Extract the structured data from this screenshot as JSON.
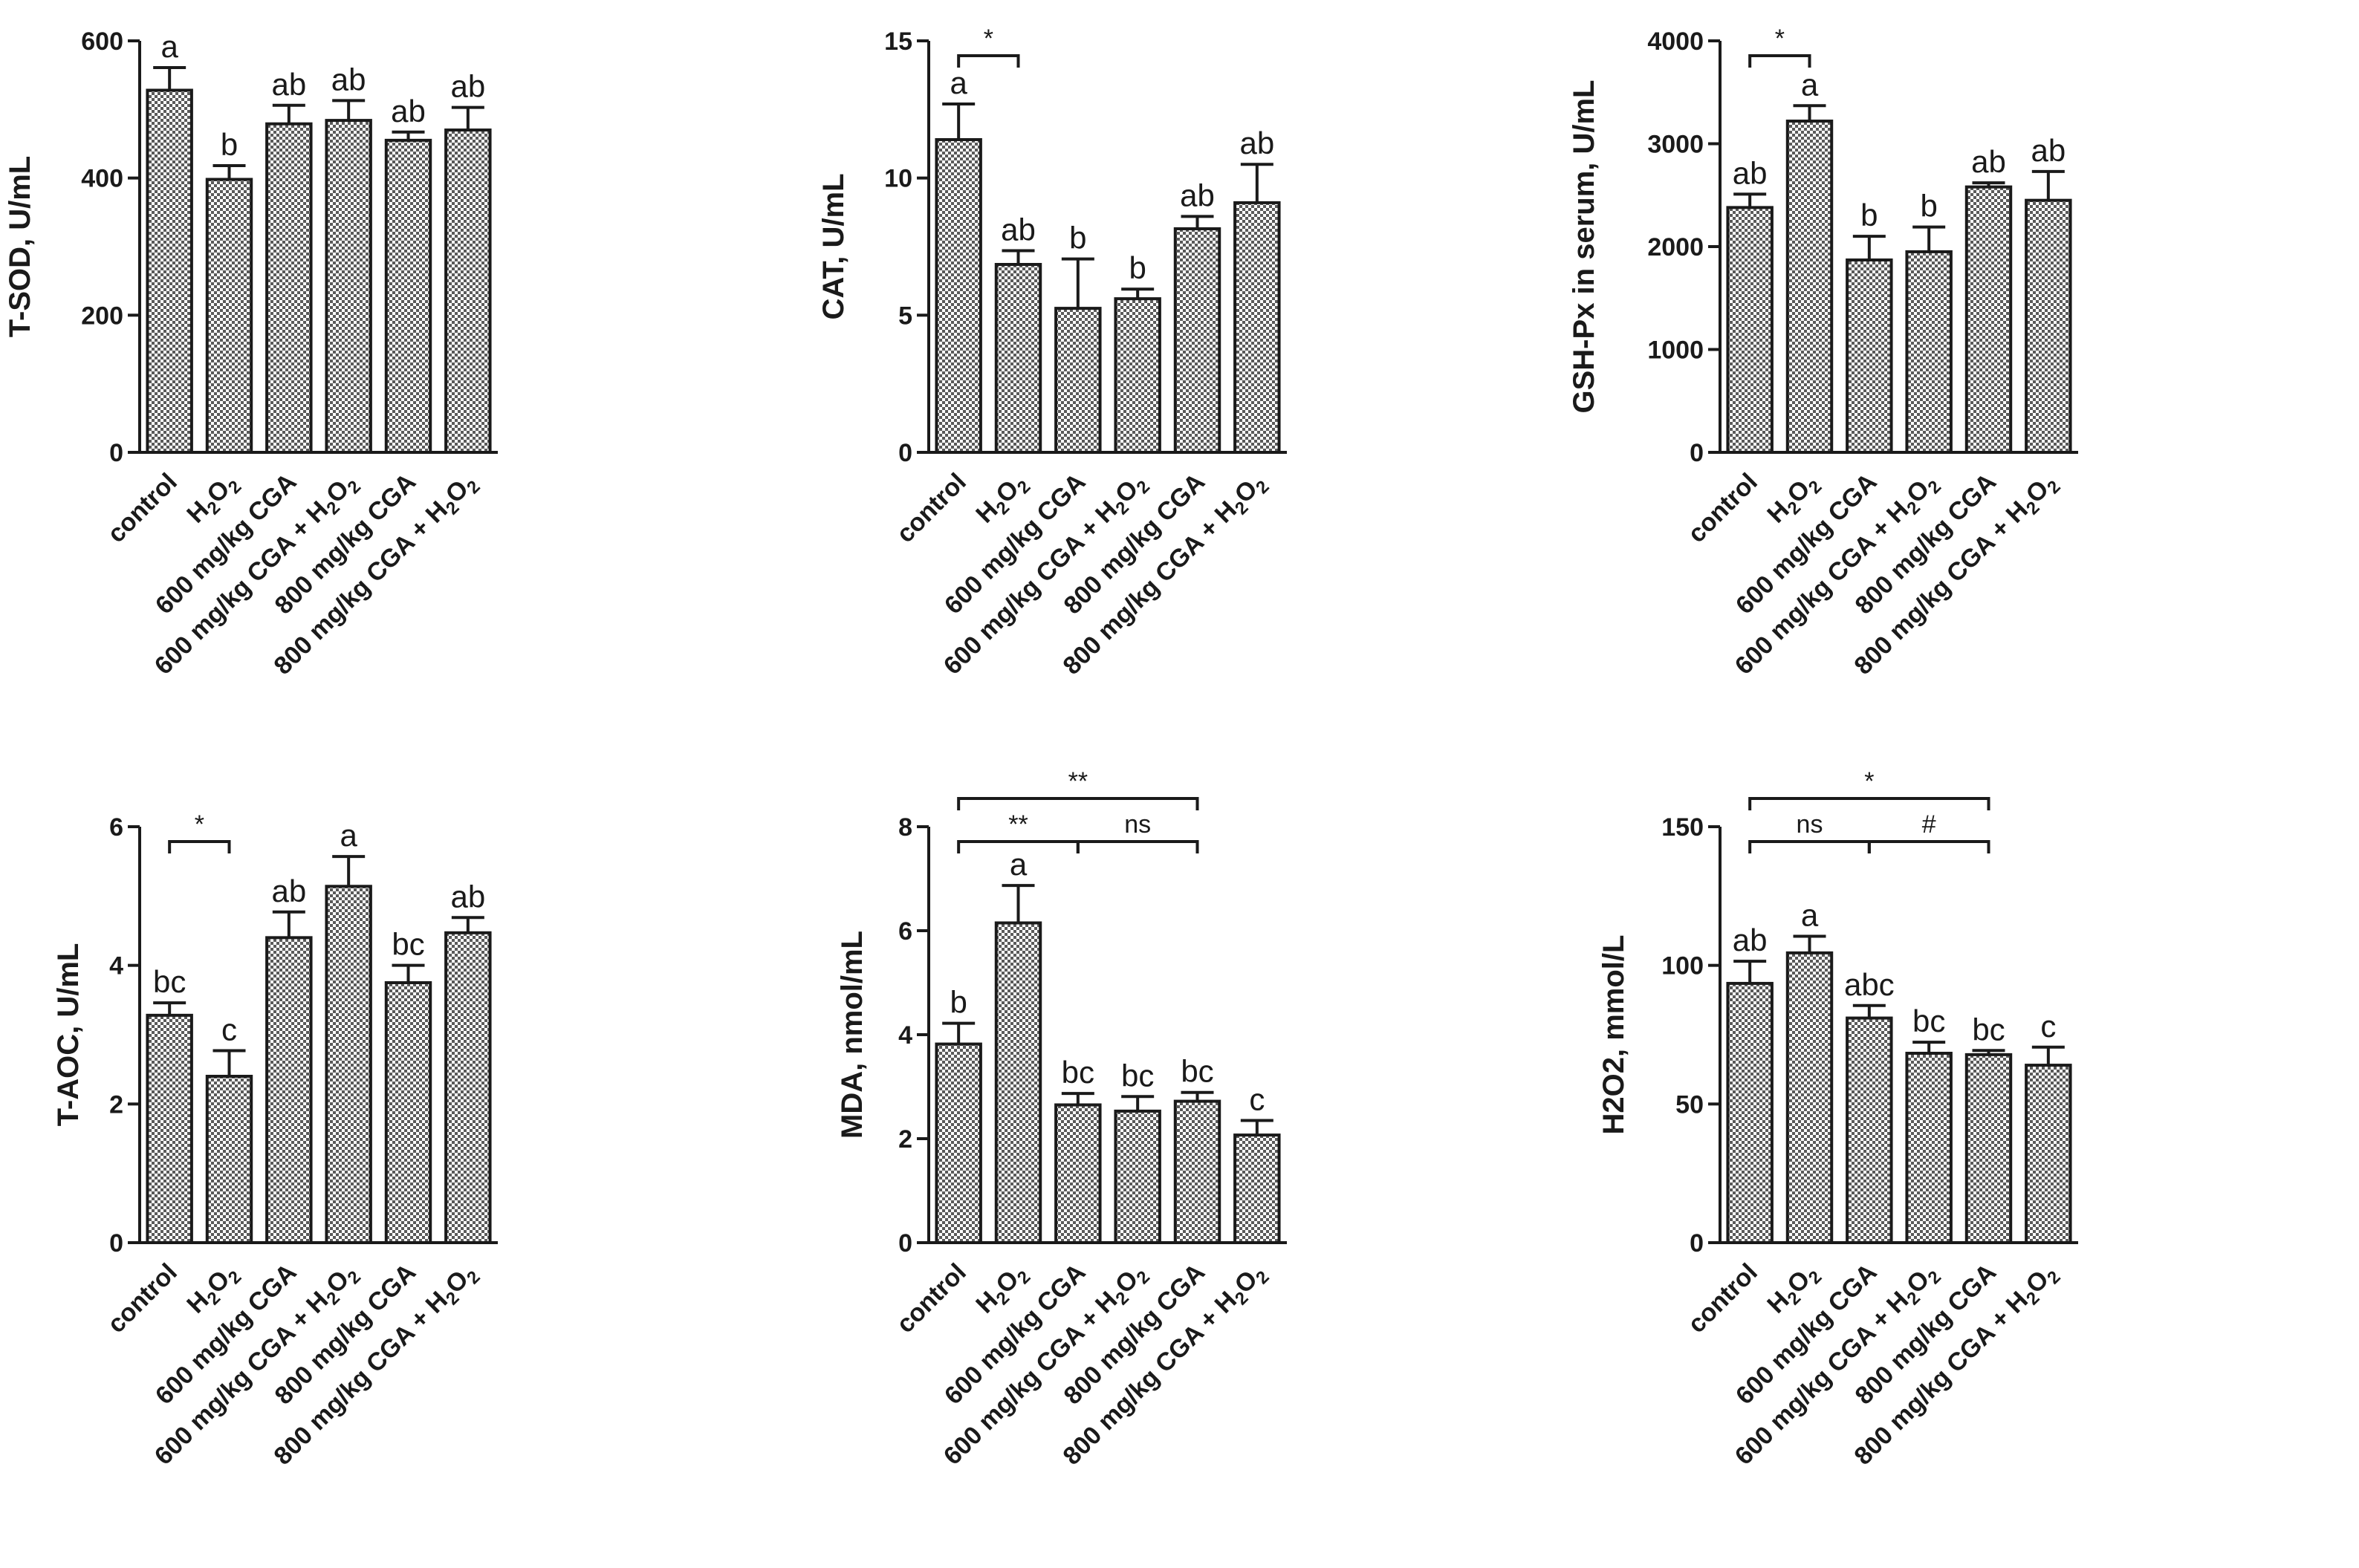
{
  "chart_data": [
    {
      "type": "bar",
      "title": "",
      "xlabel": "",
      "ylabel": "T-SOD, U/mL",
      "categories": [
        "control",
        "H2O2",
        "600 mg/kg CGA",
        "600 mg/kg CGA + H2O2",
        "800 mg/kg CGA",
        "800 mg/kg CGA + H2O2"
      ],
      "values": [
        528,
        398,
        479,
        484,
        455,
        470
      ],
      "errors": [
        33,
        20,
        27,
        29,
        12,
        33
      ],
      "significance": [
        "a",
        "b",
        "ab",
        "ab",
        "ab",
        "ab"
      ],
      "ylim": [
        0,
        600
      ],
      "yticks": [
        0,
        200,
        400,
        600
      ],
      "comparisons": []
    },
    {
      "type": "bar",
      "title": "",
      "xlabel": "",
      "ylabel": "CAT, U/mL",
      "categories": [
        "control",
        "H2O2",
        "600 mg/kg CGA",
        "600 mg/kg CGA + H2O2",
        "800 mg/kg CGA",
        "800 mg/kg CGA + H2O2"
      ],
      "values": [
        11.4,
        6.85,
        5.25,
        5.6,
        8.15,
        9.1
      ],
      "errors": [
        1.3,
        0.5,
        1.8,
        0.35,
        0.45,
        1.4
      ],
      "significance": [
        "a",
        "ab",
        "b",
        "b",
        "ab",
        "ab"
      ],
      "ylim": [
        0,
        15
      ],
      "yticks": [
        0,
        5,
        10,
        15
      ],
      "comparisons": [
        {
          "from": 0,
          "to": 1,
          "label": "*",
          "level": 0
        }
      ]
    },
    {
      "type": "bar",
      "title": "",
      "xlabel": "",
      "ylabel": "GSH-Px in serum, U/mL",
      "categories": [
        "control",
        "H2O2",
        "600 mg/kg CGA",
        "600 mg/kg CGA + H2O2",
        "800 mg/kg CGA",
        "800 mg/kg CGA + H2O2"
      ],
      "values": [
        2380,
        3220,
        1870,
        1950,
        2580,
        2450
      ],
      "errors": [
        130,
        150,
        230,
        240,
        40,
        280
      ],
      "significance": [
        "ab",
        "a",
        "b",
        "b",
        "ab",
        "ab"
      ],
      "ylim": [
        0,
        4000
      ],
      "yticks": [
        0,
        1000,
        2000,
        3000,
        4000
      ],
      "comparisons": [
        {
          "from": 0,
          "to": 1,
          "label": "*",
          "level": 0
        }
      ]
    },
    {
      "type": "bar",
      "title": "",
      "xlabel": "",
      "ylabel": "T-AOC, U/mL",
      "categories": [
        "control",
        "H2O2",
        "600 mg/kg CGA",
        "600 mg/kg CGA + H2O2",
        "800 mg/kg CGA",
        "800 mg/kg CGA + H2O2"
      ],
      "values": [
        3.28,
        2.4,
        4.4,
        5.14,
        3.75,
        4.47
      ],
      "errors": [
        0.18,
        0.37,
        0.37,
        0.43,
        0.25,
        0.22
      ],
      "significance": [
        "bc",
        "c",
        "ab",
        "a",
        "bc",
        "ab"
      ],
      "ylim": [
        0,
        6
      ],
      "yticks": [
        0,
        2,
        4,
        6
      ],
      "comparisons": [
        {
          "from": 0,
          "to": 1,
          "label": "*",
          "level": 0
        }
      ]
    },
    {
      "type": "bar",
      "title": "",
      "xlabel": "",
      "ylabel": "MDA, nmol/mL",
      "categories": [
        "control",
        "H2O2",
        "600 mg/kg CGA",
        "600 mg/kg CGA + H2O2",
        "800 mg/kg CGA",
        "800 mg/kg CGA + H2O2"
      ],
      "values": [
        3.82,
        6.15,
        2.65,
        2.53,
        2.72,
        2.07
      ],
      "errors": [
        0.4,
        0.72,
        0.22,
        0.28,
        0.17,
        0.28
      ],
      "significance": [
        "b",
        "a",
        "bc",
        "bc",
        "bc",
        "c"
      ],
      "ylim": [
        0,
        8
      ],
      "yticks": [
        0,
        2,
        4,
        6,
        8
      ],
      "comparisons": [
        {
          "from": 0,
          "to": 2,
          "label": "**",
          "level": 0
        },
        {
          "from": 2,
          "to": 4,
          "label": "ns",
          "level": 0
        },
        {
          "from": 0,
          "to": 4,
          "label": "**",
          "level": 1
        }
      ]
    },
    {
      "type": "bar",
      "title": "",
      "xlabel": "",
      "ylabel": "H2O2, mmol/L",
      "categories": [
        "control",
        "H2O2",
        "600 mg/kg CGA",
        "600 mg/kg CGA + H2O2",
        "800 mg/kg CGA",
        "800 mg/kg CGA + H2O2"
      ],
      "values": [
        93.5,
        104.5,
        81.0,
        68.3,
        67.8,
        64.0
      ],
      "errors": [
        8.0,
        6.0,
        4.5,
        4.0,
        1.5,
        6.5
      ],
      "significance": [
        "ab",
        "a",
        "abc",
        "bc",
        "bc",
        "c"
      ],
      "ylim": [
        0,
        150
      ],
      "yticks": [
        0,
        50,
        100,
        150
      ],
      "comparisons": [
        {
          "from": 0,
          "to": 2,
          "label": "ns",
          "level": 0
        },
        {
          "from": 2,
          "to": 4,
          "label": "#",
          "level": 0
        },
        {
          "from": 0,
          "to": 4,
          "label": "*",
          "level": 1
        }
      ]
    }
  ]
}
